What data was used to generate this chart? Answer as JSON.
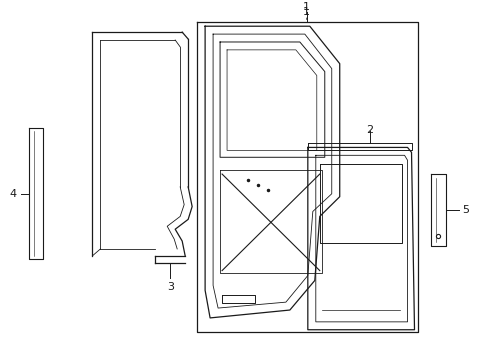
{
  "bg_color": "#ffffff",
  "line_color": "#1a1a1a",
  "lw": 0.9,
  "fs": 8,
  "fig_w": 4.89,
  "fig_h": 3.6,
  "dpi": 100
}
